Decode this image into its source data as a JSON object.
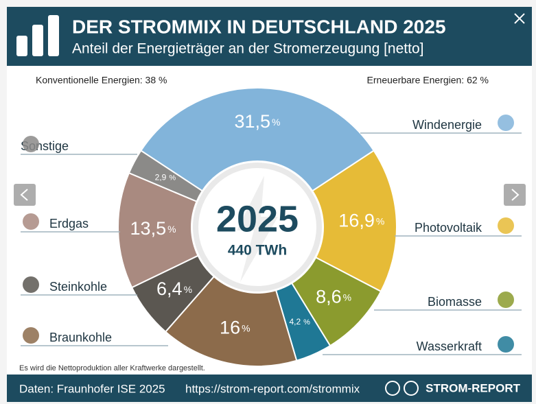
{
  "header": {
    "title": "DER STROMMIX IN DEUTSCHLAND 2025",
    "subtitle": "Anteil der Energieträger an der Stromerzeugung [netto]"
  },
  "chart_data": {
    "type": "donut",
    "categories": [
      "Windenergie",
      "Photovoltaik",
      "Biomasse",
      "Wasserkraft",
      "Braunkohle",
      "Steinkohle",
      "Erdgas",
      "Sonstige"
    ],
    "values": [
      31.5,
      16.9,
      8.6,
      4.2,
      16,
      6.4,
      13.5,
      2.9
    ],
    "value_labels": [
      "31,5",
      "16,9",
      "8,6",
      "4,2",
      "16",
      "6,4",
      "13,5",
      "2,9"
    ],
    "unit": "%",
    "colors": [
      "#82b4da",
      "#e6bb37",
      "#8b9b2e",
      "#1f7895",
      "#8c6b4b",
      "#5b5751",
      "#a98a80",
      "#8b8a88"
    ],
    "center_title": "2025",
    "center_subtitle": "440 TWh",
    "group_labels": [
      "Konventionelle Energien: 38 %",
      "Erneuerbare Energien: 62 %"
    ],
    "note": "Es wird die Nettoproduktion aller Kraftwerke dargestellt."
  },
  "footer": {
    "source": "Daten: Fraunhofer ISE 2025",
    "url": "https://strom-report.com/strommix",
    "brand": "STROM-REPORT"
  }
}
